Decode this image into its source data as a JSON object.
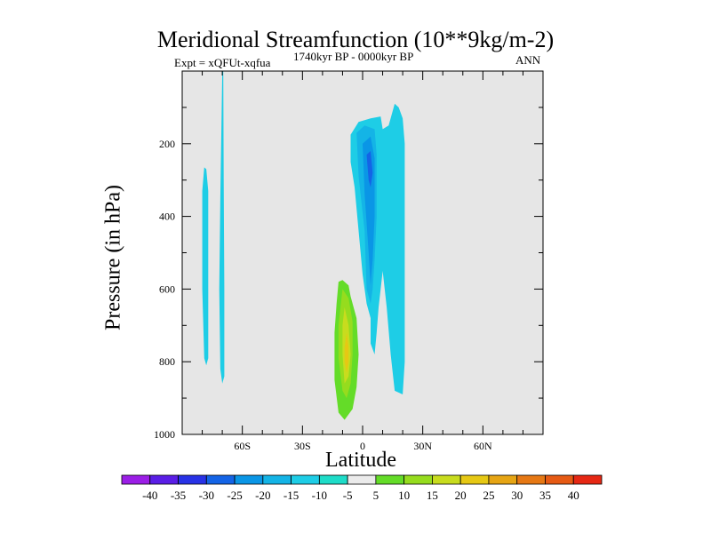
{
  "chart_data": {
    "type": "contour",
    "title": "Meridional Streamfunction (10**9kg/m-2)",
    "left_string": "Expt = xQFUt-xqfua",
    "center_string": "1740kyr BP - 0000kyr BP",
    "right_string": "ANN",
    "xlabel": "Latitude",
    "ylabel": "Pressure (in hPa)",
    "xlim": [
      -90,
      90
    ],
    "ylim": [
      1000,
      0
    ],
    "x_ticks": [
      {
        "value": -60,
        "label": "60S"
      },
      {
        "value": -30,
        "label": "30S"
      },
      {
        "value": 0,
        "label": "0"
      },
      {
        "value": 30,
        "label": "30N"
      },
      {
        "value": 60,
        "label": "60N"
      }
    ],
    "y_ticks": [
      {
        "value": 200,
        "label": "200"
      },
      {
        "value": 400,
        "label": "400"
      },
      {
        "value": 600,
        "label": "600"
      },
      {
        "value": 800,
        "label": "800"
      },
      {
        "value": 1000,
        "label": "1000"
      }
    ],
    "background_color": "#e6e6e6",
    "colorbar": {
      "labels": [
        "-40",
        "-35",
        "-30",
        "-25",
        "-20",
        "-15",
        "-10",
        "-5",
        "5",
        "10",
        "15",
        "20",
        "25",
        "30",
        "35",
        "40"
      ],
      "colors": [
        "#9b1ee6",
        "#5a1ee6",
        "#2832e6",
        "#1464e6",
        "#0a96e6",
        "#14b4e6",
        "#1ecde6",
        "#1edcc8",
        "#ebebeb",
        "#64dc28",
        "#96dc1e",
        "#c8dc1e",
        "#e6c814",
        "#e6a514",
        "#e67814",
        "#e65a14",
        "#e62814"
      ]
    },
    "regions": [
      {
        "name": "left-strip-a",
        "level": -10,
        "points": [
          [
            -79,
            265
          ],
          [
            -78,
            270
          ],
          [
            -77,
            330
          ],
          [
            -77,
            600
          ],
          [
            -77,
            790
          ],
          [
            -78,
            810
          ],
          [
            -79,
            790
          ],
          [
            -80,
            600
          ],
          [
            -80,
            330
          ]
        ]
      },
      {
        "name": "left-strip-b",
        "level": -10,
        "points": [
          [
            -70,
            0
          ],
          [
            -69.5,
            0
          ],
          [
            -69.3,
            300
          ],
          [
            -69,
            600
          ],
          [
            -69,
            840
          ],
          [
            -70,
            860
          ],
          [
            -71,
            820
          ],
          [
            -71.5,
            600
          ],
          [
            -71,
            350
          ]
        ]
      },
      {
        "name": "right-tropical-cell",
        "level": -10,
        "points": [
          [
            -6,
            175
          ],
          [
            -2,
            140
          ],
          [
            4,
            130
          ],
          [
            9,
            125
          ],
          [
            10,
            160
          ],
          [
            13,
            150
          ],
          [
            16,
            90
          ],
          [
            18,
            100
          ],
          [
            20,
            130
          ],
          [
            21,
            200
          ],
          [
            21,
            600
          ],
          [
            21,
            800
          ],
          [
            20,
            890
          ],
          [
            16,
            880
          ],
          [
            14,
            780
          ],
          [
            12,
            650
          ],
          [
            10,
            550
          ],
          [
            8,
            650
          ],
          [
            7,
            720
          ],
          [
            6,
            780
          ],
          [
            4,
            750
          ],
          [
            4,
            680
          ],
          [
            2,
            640
          ],
          [
            0,
            560
          ],
          [
            -2,
            440
          ],
          [
            -4,
            320
          ],
          [
            -6,
            250
          ]
        ]
      },
      {
        "name": "inner-cell-15",
        "level": -15,
        "points": [
          [
            -3,
            170
          ],
          [
            1,
            150
          ],
          [
            6,
            160
          ],
          [
            7,
            230
          ],
          [
            7,
            400
          ],
          [
            6,
            520
          ],
          [
            5,
            600
          ],
          [
            4,
            640
          ],
          [
            2,
            600
          ],
          [
            1,
            440
          ],
          [
            -2,
            290
          ]
        ]
      },
      {
        "name": "inner-cell-20",
        "level": -20,
        "points": [
          [
            0,
            200
          ],
          [
            4,
            180
          ],
          [
            6,
            240
          ],
          [
            6,
            400
          ],
          [
            5,
            520
          ],
          [
            4,
            590
          ],
          [
            3,
            500
          ],
          [
            1,
            340
          ]
        ]
      },
      {
        "name": "inner-cell-25",
        "level": -25,
        "points": [
          [
            2,
            230
          ],
          [
            4,
            220
          ],
          [
            5,
            280
          ],
          [
            4,
            320
          ],
          [
            3,
            300
          ]
        ]
      },
      {
        "name": "south-cell-5",
        "level": 5,
        "points": [
          [
            -12,
            580
          ],
          [
            -10,
            575
          ],
          [
            -7,
            590
          ],
          [
            -6,
            620
          ],
          [
            -3,
            680
          ],
          [
            -2,
            780
          ],
          [
            -3,
            870
          ],
          [
            -5,
            930
          ],
          [
            -9,
            960
          ],
          [
            -12,
            940
          ],
          [
            -14,
            850
          ],
          [
            -14,
            720
          ],
          [
            -13,
            640
          ]
        ]
      },
      {
        "name": "south-cell-10",
        "level": 10,
        "points": [
          [
            -10,
            600
          ],
          [
            -7,
            625
          ],
          [
            -5,
            690
          ],
          [
            -5,
            780
          ],
          [
            -6,
            860
          ],
          [
            -8,
            900
          ],
          [
            -10,
            880
          ],
          [
            -12,
            790
          ],
          [
            -12,
            700
          ]
        ]
      },
      {
        "name": "south-cell-15",
        "level": 15,
        "points": [
          [
            -9,
            650
          ],
          [
            -7,
            700
          ],
          [
            -6,
            780
          ],
          [
            -7,
            840
          ],
          [
            -9,
            860
          ],
          [
            -10,
            780
          ],
          [
            -10,
            700
          ]
        ]
      },
      {
        "name": "south-cell-20",
        "level": 20,
        "points": [
          [
            -8,
            720
          ],
          [
            -7,
            760
          ],
          [
            -7,
            800
          ],
          [
            -8,
            830
          ],
          [
            -9,
            800
          ],
          [
            -9,
            760
          ]
        ]
      }
    ]
  }
}
